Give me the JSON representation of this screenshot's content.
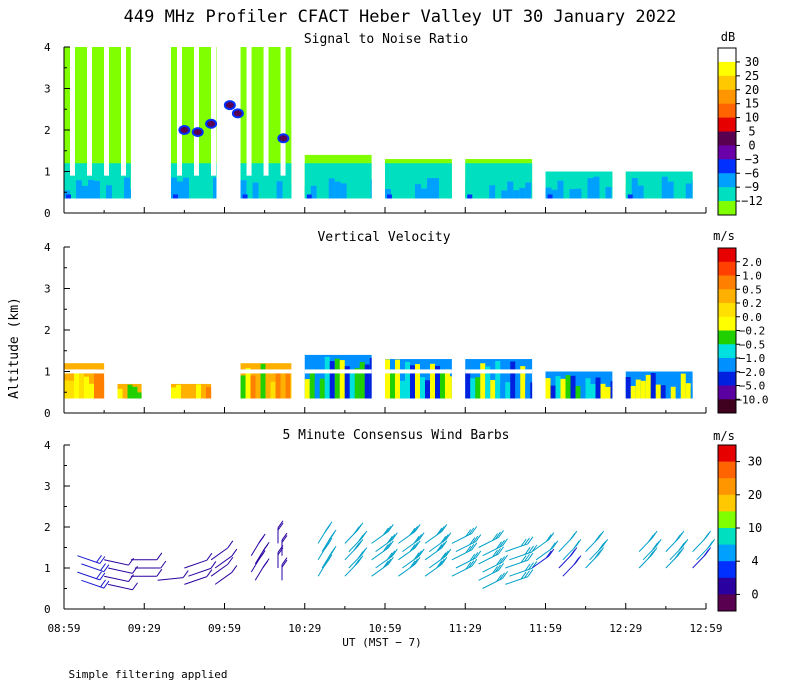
{
  "title": "449 MHz Profiler CFACT Heber Valley UT 30 January 2022",
  "y_label": "Altitude (km)",
  "x_label": "UT  (MST − 7)",
  "footnote": "Simple filtering applied",
  "x_ticks": [
    "08:59",
    "09:29",
    "09:59",
    "10:29",
    "10:59",
    "11:29",
    "11:59",
    "12:29",
    "12:59"
  ],
  "y_ticks": [
    "0",
    "1",
    "2",
    "3",
    "4"
  ],
  "chart_data": [
    {
      "type": "heatmap",
      "title": "Signal to Noise Ratio",
      "ylabel": "Altitude (km)",
      "ylim": [
        0,
        4
      ],
      "colorbar": {
        "unit": "dB",
        "labels": [
          "30",
          "25",
          "20",
          "15",
          "10",
          "5",
          "0",
          "−3",
          "−6",
          "−9",
          "−12"
        ],
        "colors": [
          "#ffffff",
          "#ffff00",
          "#ffc800",
          "#ff9600",
          "#ff6400",
          "#e60000",
          "#5a0050",
          "#6a00a8",
          "#0030ff",
          "#00a0ff",
          "#00e0c0",
          "#80ff00"
        ]
      },
      "blocks": [
        {
          "start": "08:59",
          "end": "09:24",
          "top_km": 4.0
        },
        {
          "start": "09:39",
          "end": "09:56",
          "top_km": 4.0
        },
        {
          "start": "10:05",
          "end": "10:24",
          "top_km": 4.0
        },
        {
          "start": "10:29",
          "end": "10:54",
          "top_km": 1.4
        },
        {
          "start": "10:59",
          "end": "11:24",
          "top_km": 1.3
        },
        {
          "start": "11:29",
          "end": "11:54",
          "top_km": 1.3
        },
        {
          "start": "11:59",
          "end": "12:24",
          "top_km": 1.0
        },
        {
          "start": "12:29",
          "end": "12:54",
          "top_km": 1.0
        }
      ]
    },
    {
      "type": "heatmap",
      "title": "Vertical Velocity",
      "ylabel": "Altitude (km)",
      "ylim": [
        0,
        4
      ],
      "colorbar": {
        "unit": "m/s",
        "labels": [
          "2.0",
          "1.0",
          "0.5",
          "0.2",
          "0.0",
          "−0.2",
          "−0.5",
          "−1.0",
          "−2.0",
          "−5.0",
          "−10.0"
        ],
        "colors": [
          "#e60000",
          "#ff4000",
          "#ff8000",
          "#ffb000",
          "#ffe000",
          "#ffff00",
          "#20d000",
          "#00e0e0",
          "#0090ff",
          "#0020e0",
          "#5a00a0",
          "#400020"
        ]
      },
      "blocks": [
        {
          "start": "08:59",
          "end": "09:14",
          "top_km": 1.2
        },
        {
          "start": "09:19",
          "end": "09:28",
          "top_km": 0.7
        },
        {
          "start": "09:39",
          "end": "09:54",
          "top_km": 0.7
        },
        {
          "start": "10:05",
          "end": "10:24",
          "top_km": 1.2
        },
        {
          "start": "10:29",
          "end": "10:54",
          "top_km": 1.4
        },
        {
          "start": "10:59",
          "end": "11:24",
          "top_km": 1.3
        },
        {
          "start": "11:29",
          "end": "11:54",
          "top_km": 1.3
        },
        {
          "start": "11:59",
          "end": "12:24",
          "top_km": 1.0
        },
        {
          "start": "12:29",
          "end": "12:54",
          "top_km": 1.0
        }
      ]
    },
    {
      "type": "scatter",
      "title": "5 Minute Consensus Wind Barbs",
      "ylabel": "Altitude (km)",
      "ylim": [
        0,
        4
      ],
      "colorbar": {
        "unit": "m/s",
        "labels": [
          "30",
          "20",
          "10",
          "4",
          "0"
        ],
        "colors": [
          "#e60000",
          "#ff6400",
          "#ff9600",
          "#ffc800",
          "#80ff00",
          "#00e0c0",
          "#00a0ff",
          "#0030ff",
          "#2a00a0",
          "#5a0050"
        ]
      },
      "barbs": [
        {
          "time": "09:04",
          "alt": [
            1.3,
            1.1,
            0.9,
            0.7
          ],
          "dir": 300,
          "speed": 5
        },
        {
          "time": "09:14",
          "alt": [
            1.2,
            1.0,
            0.8,
            0.6
          ],
          "dir": 290,
          "speed": 3
        },
        {
          "time": "09:24",
          "alt": [
            1.2,
            1.0,
            0.8
          ],
          "dir": 270,
          "speed": 3
        },
        {
          "time": "09:34",
          "alt": [
            0.7
          ],
          "dir": 260,
          "speed": 3
        },
        {
          "time": "09:44",
          "alt": [
            1.0,
            0.8,
            0.6
          ],
          "dir": 240,
          "speed": 3
        },
        {
          "time": "09:54",
          "alt": [
            1.2,
            1.0,
            0.8,
            0.6
          ],
          "dir": 220,
          "speed": 3
        },
        {
          "time": "10:09",
          "alt": [
            1.3,
            1.1,
            0.9,
            0.7
          ],
          "dir": 200,
          "speed": 4
        },
        {
          "time": "10:19",
          "alt": [
            1.6,
            1.3,
            1.0,
            0.7
          ],
          "dir": 180,
          "speed": 4
        },
        {
          "time": "10:34",
          "alt": [
            1.6,
            1.4,
            1.2,
            1.0,
            0.8
          ],
          "dir": 200,
          "speed": 8
        },
        {
          "time": "10:44",
          "alt": [
            1.6,
            1.4,
            1.2,
            1.0,
            0.8
          ],
          "dir": 210,
          "speed": 7
        },
        {
          "time": "10:54",
          "alt": [
            1.6,
            1.4,
            1.2,
            1.0,
            0.8
          ],
          "dir": 220,
          "speed": 7
        },
        {
          "time": "11:04",
          "alt": [
            1.6,
            1.4,
            1.2,
            1.0,
            0.8
          ],
          "dir": 220,
          "speed": 8
        },
        {
          "time": "11:14",
          "alt": [
            1.6,
            1.4,
            1.2,
            1.0,
            0.8
          ],
          "dir": 220,
          "speed": 8
        },
        {
          "time": "11:24",
          "alt": [
            1.6,
            1.4,
            1.2,
            1.0,
            0.8
          ],
          "dir": 230,
          "speed": 7
        },
        {
          "time": "11:34",
          "alt": [
            1.5,
            1.3,
            1.1,
            0.9,
            0.7,
            0.5
          ],
          "dir": 230,
          "speed": 8
        },
        {
          "time": "11:44",
          "alt": [
            1.4,
            1.2,
            1.0,
            0.8,
            0.6
          ],
          "dir": 240,
          "speed": 8
        },
        {
          "time": "11:54",
          "alt": [
            1.4,
            1.2,
            1.0
          ],
          "dir": 220,
          "speed": 6
        },
        {
          "time": "12:04",
          "alt": [
            1.4,
            1.2,
            1.0,
            0.8
          ],
          "dir": 210,
          "speed": 6
        },
        {
          "time": "12:14",
          "alt": [
            1.4,
            1.2,
            1.0
          ],
          "dir": 210,
          "speed": 7
        },
        {
          "time": "12:34",
          "alt": [
            1.4,
            1.2,
            1.0
          ],
          "dir": 210,
          "speed": 7
        },
        {
          "time": "12:44",
          "alt": [
            1.4,
            1.2,
            1.0
          ],
          "dir": 210,
          "speed": 7
        },
        {
          "time": "12:54",
          "alt": [
            1.4,
            1.2,
            1.0
          ],
          "dir": 210,
          "speed": 6
        }
      ]
    }
  ]
}
